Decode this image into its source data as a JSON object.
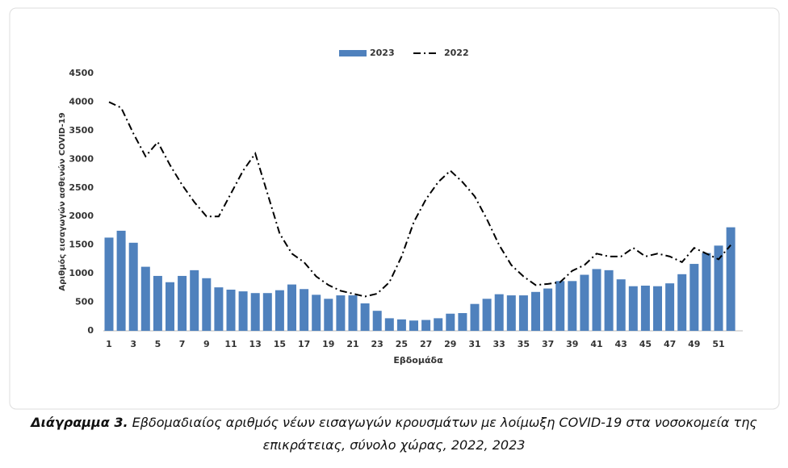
{
  "chart_data": {
    "type": "bar",
    "categories": [
      1,
      null,
      3,
      null,
      5,
      null,
      7,
      null,
      9,
      null,
      11,
      null,
      13,
      null,
      15,
      null,
      17,
      null,
      19,
      null,
      21,
      null,
      23,
      null,
      25,
      null,
      27,
      null,
      29,
      null,
      31,
      null,
      33,
      null,
      35,
      null,
      37,
      null,
      39,
      null,
      41,
      null,
      43,
      null,
      45,
      null,
      47,
      null,
      49,
      null,
      51,
      null
    ],
    "series": [
      {
        "name": "2023",
        "type": "bar",
        "color": "#4f81bd",
        "values": [
          1630,
          1750,
          1540,
          1120,
          960,
          850,
          960,
          1060,
          920,
          760,
          720,
          690,
          660,
          660,
          710,
          810,
          730,
          630,
          560,
          620,
          620,
          480,
          350,
          220,
          200,
          180,
          190,
          220,
          300,
          310,
          470,
          560,
          640,
          620,
          620,
          680,
          740,
          870,
          870,
          980,
          1080,
          1060,
          900,
          780,
          790,
          780,
          830,
          990,
          1170,
          1360,
          1490,
          1810
        ]
      },
      {
        "name": "2022",
        "type": "line",
        "color": "#000000",
        "values": [
          4000,
          3900,
          3450,
          3050,
          3300,
          2900,
          2550,
          2250,
          2000,
          2000,
          2400,
          2800,
          3100,
          2400,
          1700,
          1350,
          1200,
          950,
          800,
          700,
          650,
          600,
          650,
          850,
          1300,
          1900,
          2300,
          2600,
          2800,
          2600,
          2350,
          1950,
          1500,
          1150,
          950,
          800,
          820,
          850,
          1050,
          1150,
          1350,
          1300,
          1300,
          1450,
          1300,
          1350,
          1300,
          1200,
          1450,
          1350,
          1250,
          1500
        ]
      }
    ],
    "ylim": [
      0,
      4500
    ],
    "yticks": [
      0,
      500,
      1000,
      1500,
      2000,
      2500,
      3000,
      3500,
      4000,
      4500
    ],
    "xlabel": "Εβδομάδα",
    "ylabel": "Αριθμός εισαγωγών ασθενών COVID-19",
    "grid": false,
    "legend": "top",
    "caption_label": "Διάγραμμα 3.",
    "caption_text": "Εβδομαδιαίος αριθμός νέων εισαγωγών κρουσμάτων με λοίμωξη COVID-19 στα νοσοκομεία της επικράτειας, σύνολο χώρας, 2022, 2023"
  }
}
